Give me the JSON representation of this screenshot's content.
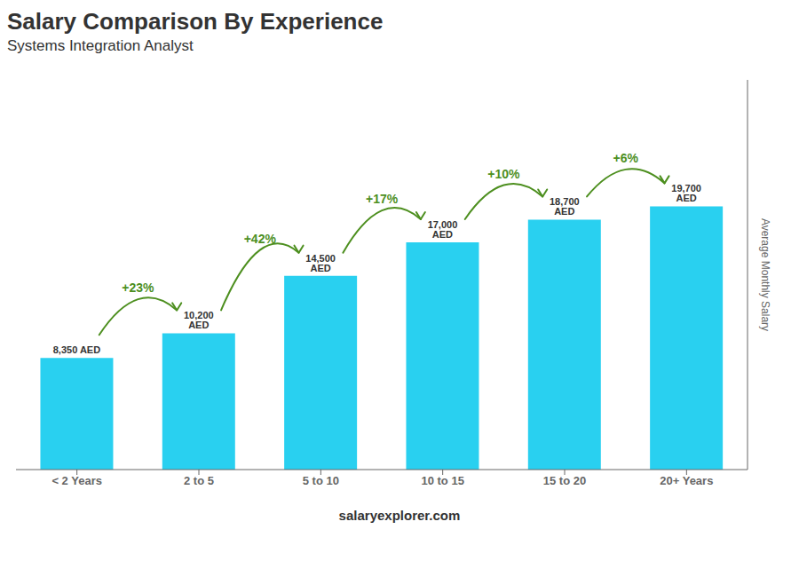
{
  "chart_data": {
    "type": "bar",
    "title": "Salary Comparison By Experience",
    "subtitle": "Systems Integration Analyst",
    "y_label": "Average Monthly Salary",
    "categories": [
      "< 2 Years",
      "2 to 5",
      "5 to 10",
      "10 to 15",
      "15 to 20",
      "20+ Years"
    ],
    "values": [
      8350,
      10200,
      14500,
      17000,
      18700,
      19700
    ],
    "value_labels": [
      "8,350 AED",
      "10,200 AED",
      "14,500 AED",
      "17,000 AED",
      "18,700 AED",
      "19,700 AED"
    ],
    "data_labels": true,
    "annotations": [
      "+23%",
      "+42%",
      "+17%",
      "+10%",
      "+6%"
    ],
    "footer": "salaryexplorer.com",
    "color": "#29d0f0",
    "ylim": [
      0,
      29156
    ],
    "tick_labels": "x",
    "grid": false
  }
}
